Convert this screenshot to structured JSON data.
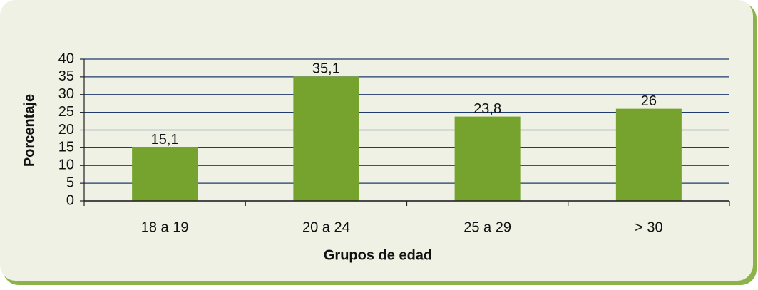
{
  "chart_data": {
    "type": "bar",
    "categories": [
      "18 a 19",
      "20 a 24",
      "25 a 29",
      "> 30"
    ],
    "values": [
      15.1,
      35.1,
      23.8,
      26
    ],
    "value_labels": [
      "15,1",
      "35,1",
      "23,8",
      "26"
    ],
    "color": "#76a22e",
    "ylim": [
      0,
      40
    ],
    "yticks": [
      0,
      5,
      10,
      15,
      20,
      25,
      30,
      35,
      40
    ],
    "grid": true,
    "y_label": "Porcentaje",
    "x_label": "Grupos de edad"
  }
}
